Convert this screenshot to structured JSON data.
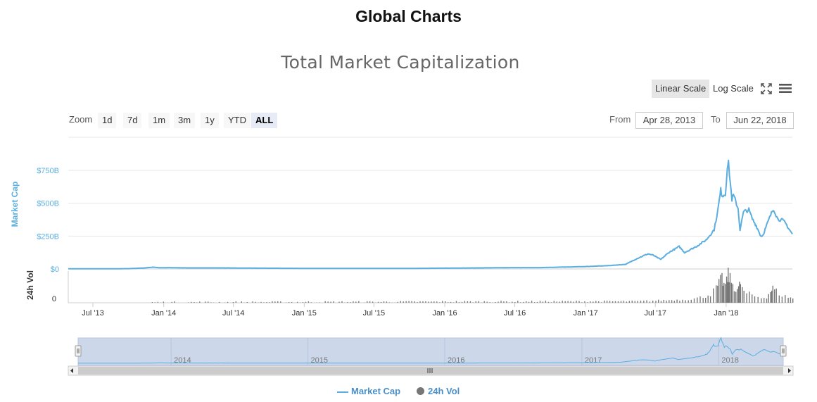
{
  "page_title": "Global Charts",
  "toolbar": {
    "linear_label": "Linear Scale",
    "log_label": "Log Scale",
    "fullscreen_icon": "fullscreen-icon",
    "menu_icon": "menu-icon"
  },
  "zoom": {
    "label": "Zoom",
    "buttons": [
      "1d",
      "7d",
      "1m",
      "3m",
      "1y",
      "YTD",
      "ALL"
    ],
    "active": "ALL"
  },
  "range": {
    "from_label": "From",
    "from_value": "Apr 28, 2013",
    "to_label": "To",
    "to_value": "Jun 22, 2018"
  },
  "colors": {
    "market_cap": "#5aaee0",
    "volume": "#777777",
    "navigator_mask": "#cdd7ea"
  },
  "chart_data": {
    "type": "line",
    "title": "Total Market Capitalization",
    "x_range": [
      "2013-04-28",
      "2018-06-22"
    ],
    "x_tick_labels": [
      "Jul '13",
      "Jan '14",
      "Jul '14",
      "Jan '15",
      "Jul '15",
      "Jan '16",
      "Jul '16",
      "Jan '17",
      "Jul '17",
      "Jan '18"
    ],
    "navigator_labels": [
      "2014",
      "2015",
      "2016",
      "2017",
      "2018"
    ],
    "market_cap_axis": {
      "label": "Market Cap",
      "ylim": [
        0,
        1000
      ],
      "unit": "B",
      "tick_labels": [
        "$0",
        "$250B",
        "$500B",
        "$750B"
      ],
      "tick_values": [
        0,
        250,
        500,
        750
      ]
    },
    "volume_axis": {
      "label": "24h Vol",
      "tick_labels": [
        "0"
      ]
    },
    "grid": true,
    "legend_position": "bottom-center",
    "series": [
      {
        "name": "Market Cap",
        "type": "line",
        "points": [
          [
            "2013-04-28",
            1.5
          ],
          [
            "2013-07-01",
            1.2
          ],
          [
            "2013-10-01",
            2
          ],
          [
            "2013-11-15",
            8
          ],
          [
            "2013-12-04",
            14
          ],
          [
            "2013-12-20",
            9
          ],
          [
            "2014-01-15",
            10
          ],
          [
            "2014-03-01",
            8
          ],
          [
            "2014-06-01",
            8
          ],
          [
            "2014-09-01",
            6
          ],
          [
            "2015-01-15",
            4
          ],
          [
            "2015-07-01",
            4
          ],
          [
            "2015-10-01",
            4
          ],
          [
            "2016-01-01",
            6
          ],
          [
            "2016-06-15",
            10
          ],
          [
            "2016-09-01",
            10
          ],
          [
            "2017-01-01",
            18
          ],
          [
            "2017-03-01",
            25
          ],
          [
            "2017-04-15",
            35
          ],
          [
            "2017-05-15",
            80
          ],
          [
            "2017-06-12",
            115
          ],
          [
            "2017-06-25",
            105
          ],
          [
            "2017-07-15",
            72
          ],
          [
            "2017-08-05",
            125
          ],
          [
            "2017-09-01",
            170
          ],
          [
            "2017-09-15",
            125
          ],
          [
            "2017-10-15",
            170
          ],
          [
            "2017-11-10",
            220
          ],
          [
            "2017-12-01",
            300
          ],
          [
            "2017-12-10",
            440
          ],
          [
            "2017-12-18",
            600
          ],
          [
            "2017-12-22",
            560
          ],
          [
            "2017-12-30",
            570
          ],
          [
            "2018-01-04",
            780
          ],
          [
            "2018-01-07",
            800
          ],
          [
            "2018-01-12",
            650
          ],
          [
            "2018-01-16",
            530
          ],
          [
            "2018-01-20",
            560
          ],
          [
            "2018-02-01",
            460
          ],
          [
            "2018-02-06",
            300
          ],
          [
            "2018-02-15",
            430
          ],
          [
            "2018-02-20",
            440
          ],
          [
            "2018-03-01",
            450
          ],
          [
            "2018-03-10",
            380
          ],
          [
            "2018-03-20",
            330
          ],
          [
            "2018-04-01",
            250
          ],
          [
            "2018-04-06",
            255
          ],
          [
            "2018-04-20",
            360
          ],
          [
            "2018-05-01",
            440
          ],
          [
            "2018-05-05",
            455
          ],
          [
            "2018-05-15",
            380
          ],
          [
            "2018-05-28",
            370
          ],
          [
            "2018-06-05",
            345
          ],
          [
            "2018-06-12",
            310
          ],
          [
            "2018-06-22",
            265
          ]
        ]
      },
      {
        "name": "24h Vol",
        "type": "column",
        "points": [
          [
            "2013-12-01",
            0.3
          ],
          [
            "2017-05-15",
            1
          ],
          [
            "2017-07-01",
            1.5
          ],
          [
            "2017-09-01",
            2
          ],
          [
            "2017-10-01",
            2.5
          ],
          [
            "2017-11-01",
            4
          ],
          [
            "2017-11-20",
            6
          ],
          [
            "2017-12-05",
            10
          ],
          [
            "2017-12-12",
            13
          ],
          [
            "2017-12-20",
            17
          ],
          [
            "2017-12-25",
            12
          ],
          [
            "2018-01-01",
            14
          ],
          [
            "2018-01-05",
            20
          ],
          [
            "2018-01-10",
            16
          ],
          [
            "2018-01-17",
            13
          ],
          [
            "2018-01-25",
            9
          ],
          [
            "2018-02-01",
            10
          ],
          [
            "2018-02-06",
            14
          ],
          [
            "2018-02-15",
            7
          ],
          [
            "2018-03-01",
            6
          ],
          [
            "2018-03-15",
            4.5
          ],
          [
            "2018-04-01",
            3.5
          ],
          [
            "2018-04-15",
            4
          ],
          [
            "2018-04-25",
            8
          ],
          [
            "2018-05-01",
            10
          ],
          [
            "2018-05-10",
            8
          ],
          [
            "2018-05-25",
            5
          ],
          [
            "2018-06-10",
            4
          ],
          [
            "2018-06-22",
            3
          ]
        ]
      }
    ]
  }
}
